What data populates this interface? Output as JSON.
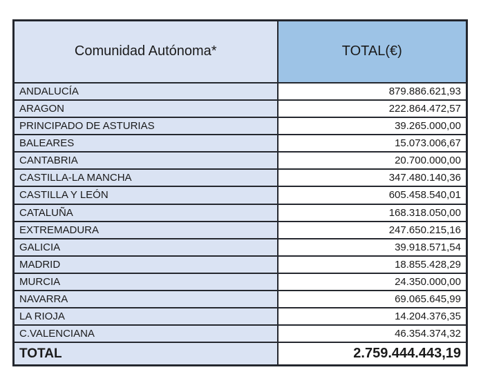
{
  "chart_data": {
    "type": "table",
    "columns": [
      "Comunidad Autónoma*",
      "TOTAL(€)"
    ],
    "rows": [
      {
        "name": "ANDALUCÍA",
        "value": "879.886.621,93"
      },
      {
        "name": "ARAGON",
        "value": "222.864.472,57"
      },
      {
        "name": "PRINCIPADO DE ASTURIAS",
        "value": "39.265.000,00"
      },
      {
        "name": "BALEARES",
        "value": "15.073.006,67"
      },
      {
        "name": "CANTABRIA",
        "value": "20.700.000,00"
      },
      {
        "name": "CASTILLA-LA MANCHA",
        "value": "347.480.140,36"
      },
      {
        "name": "CASTILLA Y LEÓN",
        "value": "605.458.540,01"
      },
      {
        "name": "CATALUÑA",
        "value": "168.318.050,00"
      },
      {
        "name": "EXTREMADURA",
        "value": "247.650.215,16"
      },
      {
        "name": "GALICIA",
        "value": "39.918.571,54"
      },
      {
        "name": "MADRID",
        "value": "18.855.428,29"
      },
      {
        "name": "MURCIA",
        "value": "24.350.000,00"
      },
      {
        "name": "NAVARRA",
        "value": "69.065.645,99"
      },
      {
        "name": "LA RIOJA",
        "value": "14.204.376,35"
      },
      {
        "name": "C.VALENCIANA",
        "value": "46.354.374,32"
      }
    ],
    "total_row": {
      "label": "TOTAL",
      "value": "2.759.444.443,19"
    }
  },
  "header": {
    "community": "Comunidad Autónoma*",
    "total": "TOTAL(€)"
  },
  "colors": {
    "header_total_fill": "#9dc3e6",
    "community_column_fill": "#dae3f3",
    "value_column_fill": "#ffffff",
    "border": "#24272e",
    "text": "#1a1a1a"
  }
}
